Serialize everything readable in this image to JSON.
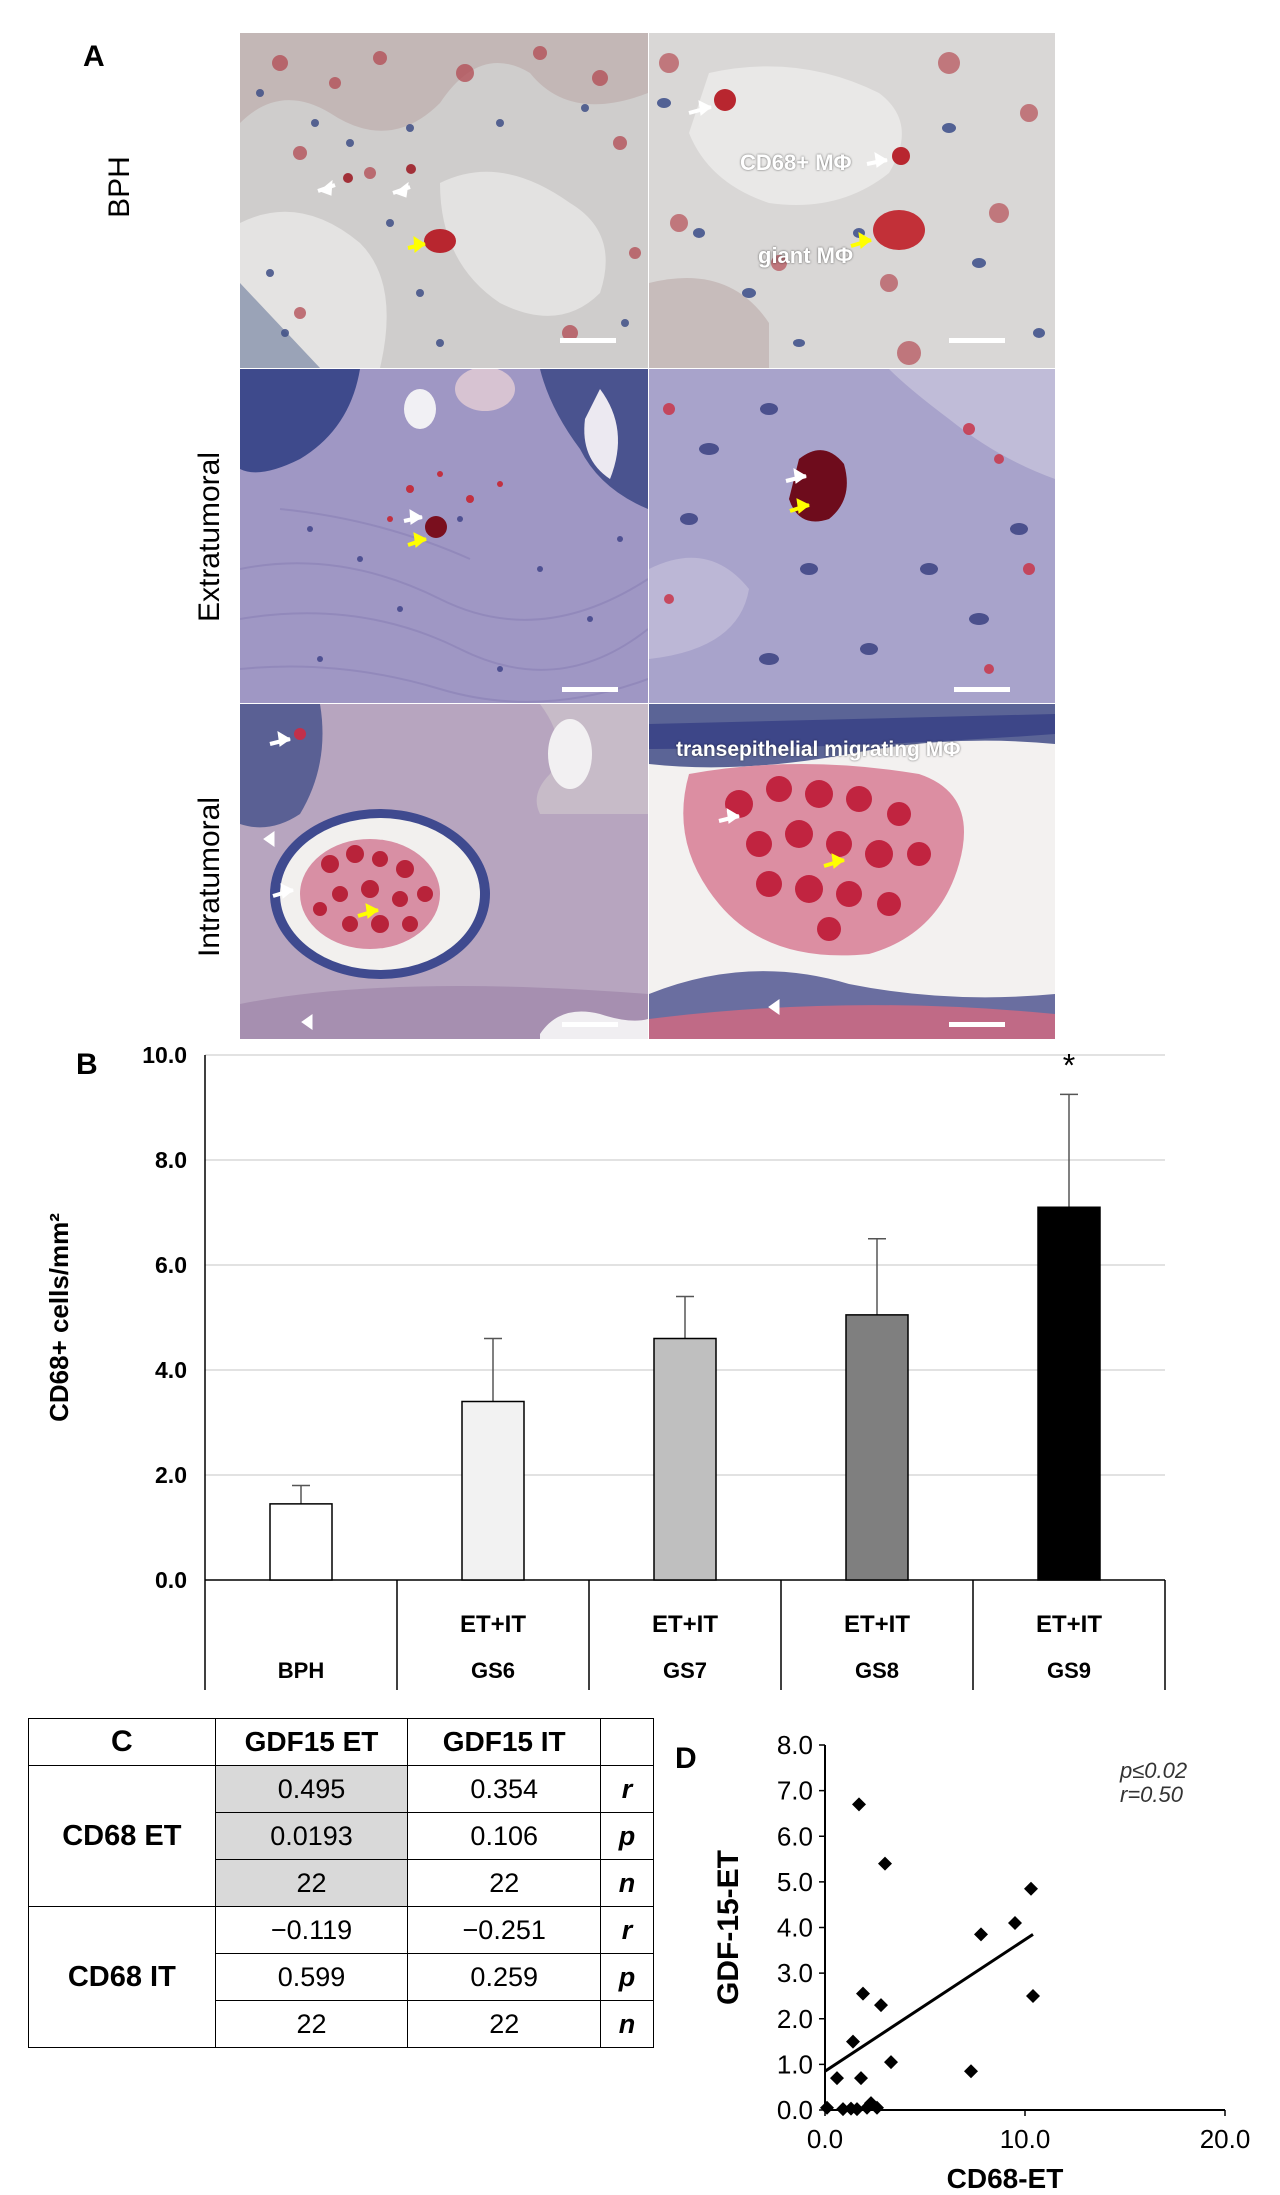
{
  "panel_a": {
    "letter": "A",
    "rows": [
      {
        "label": "BPH"
      },
      {
        "label": "Extratumoral"
      },
      {
        "label": "Intratumoral"
      }
    ],
    "annotations": {
      "cd68_mphi": "CD68+ MΦ",
      "giant_mphi": "giant MΦ",
      "transepithelial": "transepithelial  migrating  MΦ"
    },
    "colors": {
      "bph_bg": "#d6d4d3",
      "stroma": "#a29ac6",
      "stain_red": "#c4233c",
      "nuclei": "#2d3a78"
    }
  },
  "panel_b": {
    "letter": "B",
    "chart_data": {
      "type": "bar",
      "categories": [
        "BPH",
        "GS6",
        "GS7",
        "GS8",
        "GS9"
      ],
      "sub_labels": [
        "",
        "ET+IT",
        "ET+IT",
        "ET+IT",
        "ET+IT"
      ],
      "values": [
        1.45,
        3.4,
        4.6,
        5.05,
        7.1
      ],
      "errors": [
        0.35,
        1.2,
        0.8,
        1.45,
        2.15
      ],
      "colors": [
        "#ffffff",
        "#f2f2f2",
        "#bfbfbf",
        "#7f7f7f",
        "#000000"
      ],
      "significance": [
        "",
        "",
        "",
        "",
        "*"
      ],
      "ylabel": "CD68+ cells/mm²",
      "yticks": [
        "0.0",
        "2.0",
        "4.0",
        "6.0",
        "8.0",
        "10.0"
      ],
      "ylim": [
        0,
        10
      ],
      "grid": true
    }
  },
  "panel_c": {
    "letter": "C",
    "headers": [
      "GDF15 ET",
      "GDF15 IT"
    ],
    "groups": [
      {
        "name": "CD68 ET",
        "rows": [
          {
            "et": "0.495",
            "it": "0.354",
            "stat": "r"
          },
          {
            "et": "0.0193",
            "it": "0.106",
            "stat": "p"
          },
          {
            "et": "22",
            "it": "22",
            "stat": "n"
          }
        ]
      },
      {
        "name": "CD68 IT",
        "rows": [
          {
            "et": "−0.119",
            "it": "−0.251",
            "stat": "r"
          },
          {
            "et": "0.599",
            "it": "0.259",
            "stat": "p"
          },
          {
            "et": "22",
            "it": "22",
            "stat": "n"
          }
        ]
      }
    ]
  },
  "panel_d": {
    "letter": "D",
    "chart_data": {
      "type": "scatter",
      "xlabel": "CD68-ET",
      "ylabel": "GDF-15-ET",
      "xlim": [
        0,
        20
      ],
      "ylim": [
        0,
        8
      ],
      "xticks": [
        "0.0",
        "10.0",
        "20.0"
      ],
      "yticks": [
        "0.0",
        "1.0",
        "2.0",
        "3.0",
        "4.0",
        "5.0",
        "6.0",
        "7.0",
        "8.0"
      ],
      "stat_p": "p≤0.02",
      "stat_r": "r=0.50",
      "points": [
        [
          0.1,
          0.05
        ],
        [
          0.6,
          0.7
        ],
        [
          0.9,
          0.02
        ],
        [
          1.3,
          0.03
        ],
        [
          1.6,
          0.02
        ],
        [
          1.4,
          1.5
        ],
        [
          1.7,
          6.7
        ],
        [
          1.8,
          0.7
        ],
        [
          1.9,
          2.55
        ],
        [
          2.1,
          0.05
        ],
        [
          2.3,
          0.15
        ],
        [
          2.6,
          0.05
        ],
        [
          2.8,
          2.3
        ],
        [
          3.0,
          5.4
        ],
        [
          3.3,
          1.05
        ],
        [
          7.3,
          0.85
        ],
        [
          7.8,
          3.85
        ],
        [
          9.5,
          4.1
        ],
        [
          10.3,
          4.85
        ],
        [
          10.4,
          2.5
        ]
      ],
      "trendline": [
        [
          0.0,
          0.85
        ],
        [
          10.4,
          3.85
        ]
      ]
    }
  }
}
